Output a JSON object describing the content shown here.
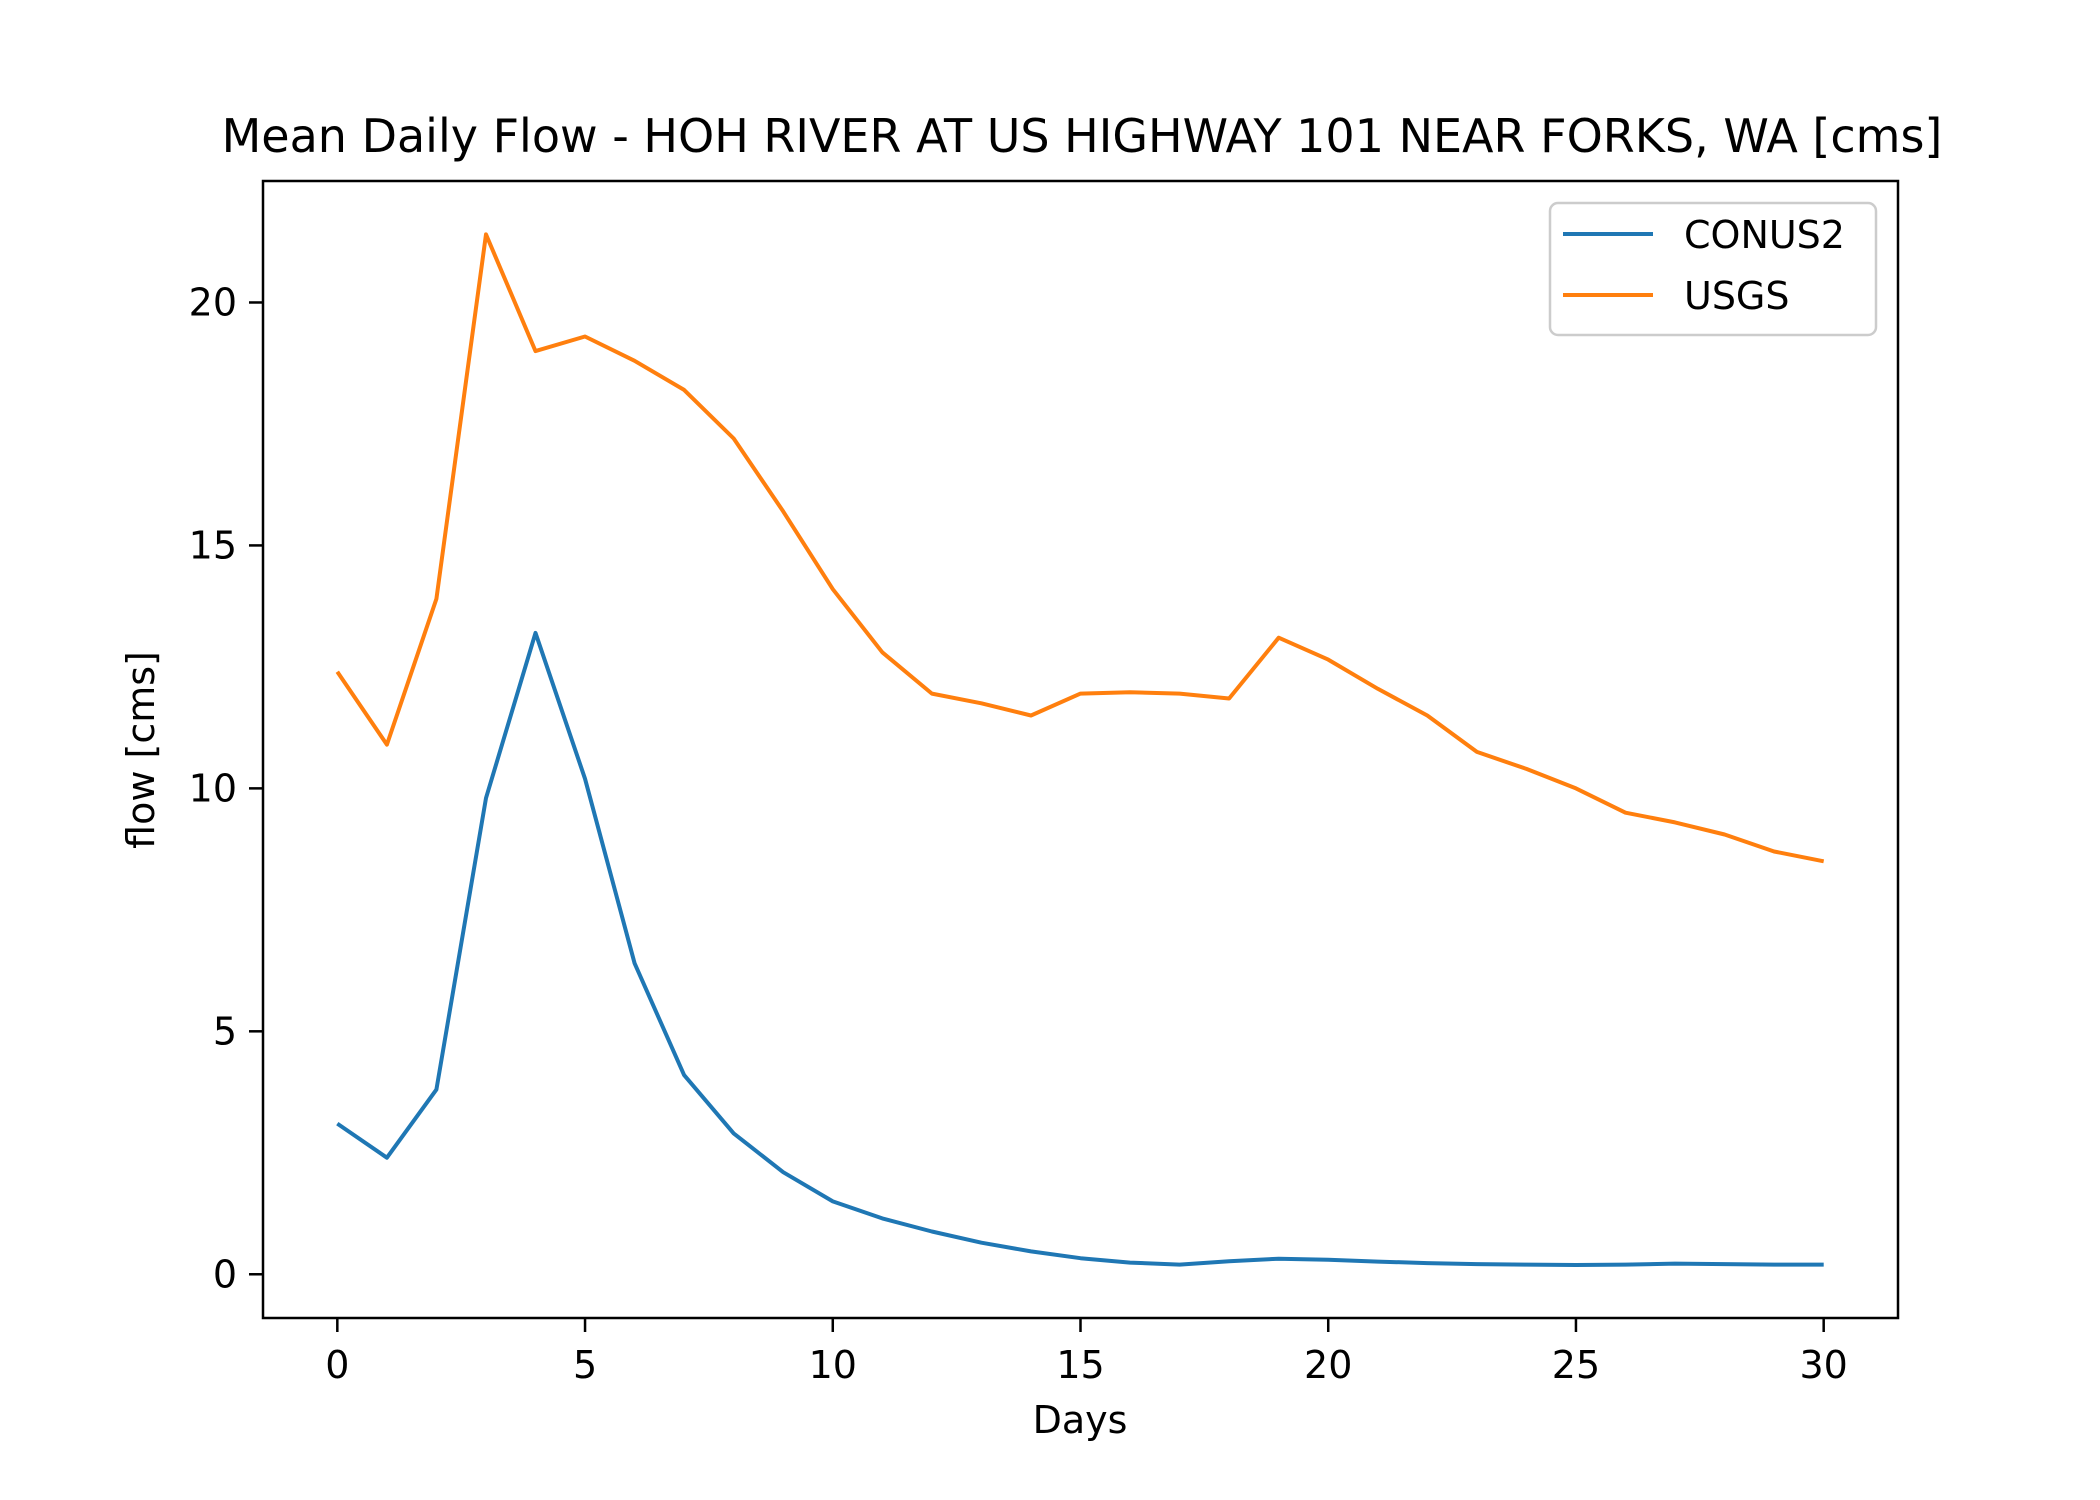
{
  "chart_data": {
    "type": "line",
    "title": "Mean Daily Flow - HOH RIVER AT US HIGHWAY 101 NEAR FORKS, WA [cms]",
    "xlabel": "Days",
    "ylabel": "flow [cms]",
    "xlim": [
      -1.5,
      31.5
    ],
    "ylim": [
      -0.9,
      22.5
    ],
    "xticks": [
      0,
      5,
      10,
      15,
      20,
      25,
      30
    ],
    "yticks": [
      0,
      5,
      10,
      15,
      20
    ],
    "grid": false,
    "legend_position": "upper right",
    "x": [
      0,
      1,
      2,
      3,
      4,
      5,
      6,
      7,
      8,
      9,
      10,
      11,
      12,
      13,
      14,
      15,
      16,
      17,
      18,
      19,
      20,
      21,
      22,
      23,
      24,
      25,
      26,
      27,
      28,
      29,
      30
    ],
    "series": [
      {
        "name": "CONUS2",
        "color": "#1f77b4",
        "values": [
          3.1,
          2.4,
          3.8,
          9.8,
          13.2,
          10.2,
          6.4,
          4.1,
          2.9,
          2.1,
          1.5,
          1.15,
          0.88,
          0.65,
          0.47,
          0.33,
          0.24,
          0.2,
          0.27,
          0.32,
          0.3,
          0.26,
          0.23,
          0.21,
          0.2,
          0.19,
          0.2,
          0.22,
          0.21,
          0.2,
          0.2
        ]
      },
      {
        "name": "USGS",
        "color": "#ff7f0e",
        "values": [
          12.4,
          10.9,
          13.9,
          21.4,
          19.0,
          19.3,
          18.8,
          18.2,
          17.2,
          15.7,
          14.1,
          12.8,
          11.95,
          11.75,
          11.5,
          11.95,
          11.98,
          11.95,
          11.85,
          13.1,
          12.65,
          12.05,
          11.5,
          10.75,
          10.4,
          10.0,
          9.5,
          9.3,
          9.05,
          8.7,
          8.5
        ]
      }
    ]
  }
}
